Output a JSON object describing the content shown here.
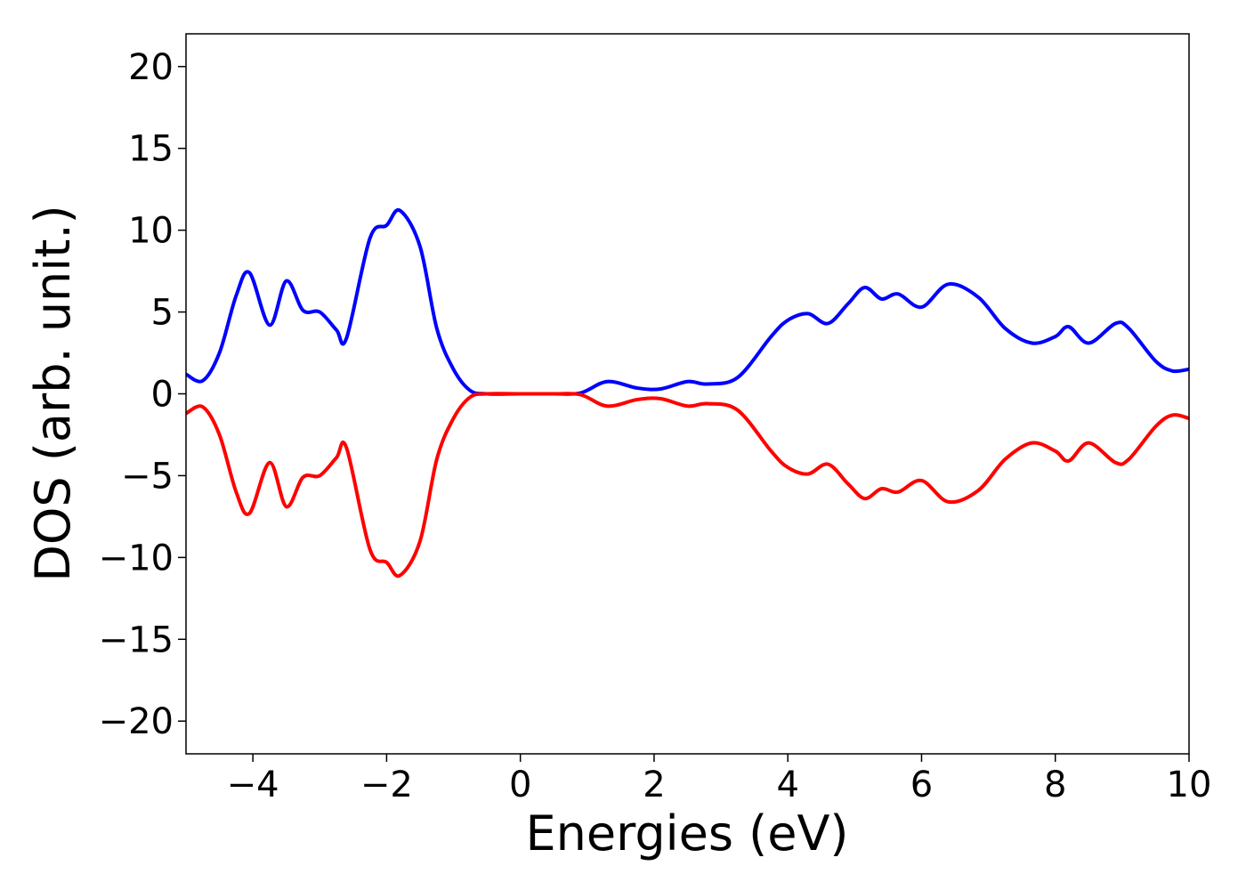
{
  "chart_data": {
    "type": "line",
    "x_label": "Energies (eV)",
    "y_label": "DOS (arb. unit.)",
    "x": [
      -5,
      -4.75,
      -4.5,
      -4.25,
      -4.05,
      -3.75,
      -3.5,
      -3.25,
      -3,
      -2.75,
      -2.6,
      -2.25,
      -2,
      -1.8,
      -1.5,
      -1.25,
      -1,
      -0.75,
      -0.5,
      0,
      0.5,
      0.9,
      1.3,
      1.75,
      2.1,
      2.5,
      2.8,
      3.25,
      3.75,
      4,
      4.3,
      4.6,
      4.9,
      5.15,
      5.4,
      5.65,
      6,
      6.4,
      6.85,
      7.25,
      7.65,
      8,
      8.2,
      8.5,
      8.9,
      9.1,
      9.5,
      9.75,
      10
    ],
    "series": [
      {
        "color": "#0000ff",
        "values": [
          1.2,
          0.8,
          2.5,
          6.0,
          7.4,
          4.2,
          6.9,
          5.1,
          5.0,
          3.9,
          3.4,
          9.5,
          10.3,
          11.2,
          9.0,
          4.0,
          1.5,
          0.2,
          0,
          0,
          0,
          0.05,
          0.75,
          0.35,
          0.3,
          0.75,
          0.6,
          1.0,
          3.5,
          4.5,
          4.9,
          4.3,
          5.5,
          6.5,
          5.8,
          6.1,
          5.3,
          6.7,
          5.9,
          4.0,
          3.1,
          3.5,
          4.1,
          3.1,
          4.3,
          4.0,
          2.0,
          1.4,
          1.5
        ]
      },
      {
        "color": "#ff0000",
        "values": [
          -1.2,
          -0.8,
          -2.5,
          -6.0,
          -7.3,
          -4.2,
          -6.9,
          -5.1,
          -5.0,
          -3.9,
          -3.3,
          -9.5,
          -10.3,
          -11.1,
          -9.0,
          -4.0,
          -1.5,
          -0.2,
          0,
          0,
          0,
          -0.05,
          -0.75,
          -0.35,
          -0.3,
          -0.75,
          -0.6,
          -1.0,
          -3.5,
          -4.5,
          -4.9,
          -4.3,
          -5.5,
          -6.4,
          -5.8,
          -6.0,
          -5.3,
          -6.6,
          -5.9,
          -4.0,
          -3.0,
          -3.5,
          -4.1,
          -3.0,
          -4.2,
          -4.0,
          -2.0,
          -1.3,
          -1.5
        ]
      }
    ],
    "xlim": [
      -5,
      10
    ],
    "ylim": [
      -22,
      22
    ],
    "xticks": [
      {
        "value": -4,
        "label": "−4"
      },
      {
        "value": -2,
        "label": "−2"
      },
      0,
      2,
      4,
      6,
      8,
      10
    ],
    "yticks": [
      {
        "value": -20,
        "label": "−20"
      },
      {
        "value": -15,
        "label": "−15"
      },
      {
        "value": -10,
        "label": "−10"
      },
      {
        "value": -5,
        "label": "−5"
      },
      0,
      5,
      10,
      15,
      20
    ]
  }
}
